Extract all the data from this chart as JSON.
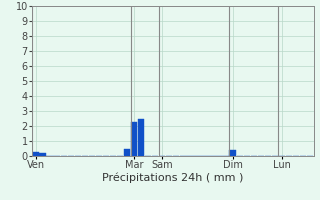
{
  "xlabel": "Précipitations 24h ( mm )",
  "ylim": [
    0,
    10
  ],
  "background_color": "#e8f8f0",
  "bar_color": "#1050c8",
  "grid_color": "#b8d8c8",
  "axis_label_color": "#444444",
  "day_labels": [
    "Ven",
    "Mar",
    "Sam",
    "Dim",
    "Lun"
  ],
  "day_positions": [
    0,
    14,
    18,
    28,
    35
  ],
  "num_bars": 40,
  "bar_values": [
    0.3,
    0.2,
    0,
    0,
    0,
    0,
    0,
    0,
    0,
    0,
    0,
    0,
    0,
    0.5,
    2.3,
    2.5,
    0,
    0,
    0,
    0,
    0,
    0,
    0,
    0,
    0,
    0,
    0,
    0,
    0.4,
    0,
    0,
    0,
    0,
    0,
    0,
    0,
    0,
    0,
    0,
    0
  ],
  "separator_color": "#888888",
  "spine_color": "#888888",
  "xlabel_color": "#333333",
  "xlabel_fontsize": 8,
  "ytick_fontsize": 7,
  "xtick_fontsize": 7
}
